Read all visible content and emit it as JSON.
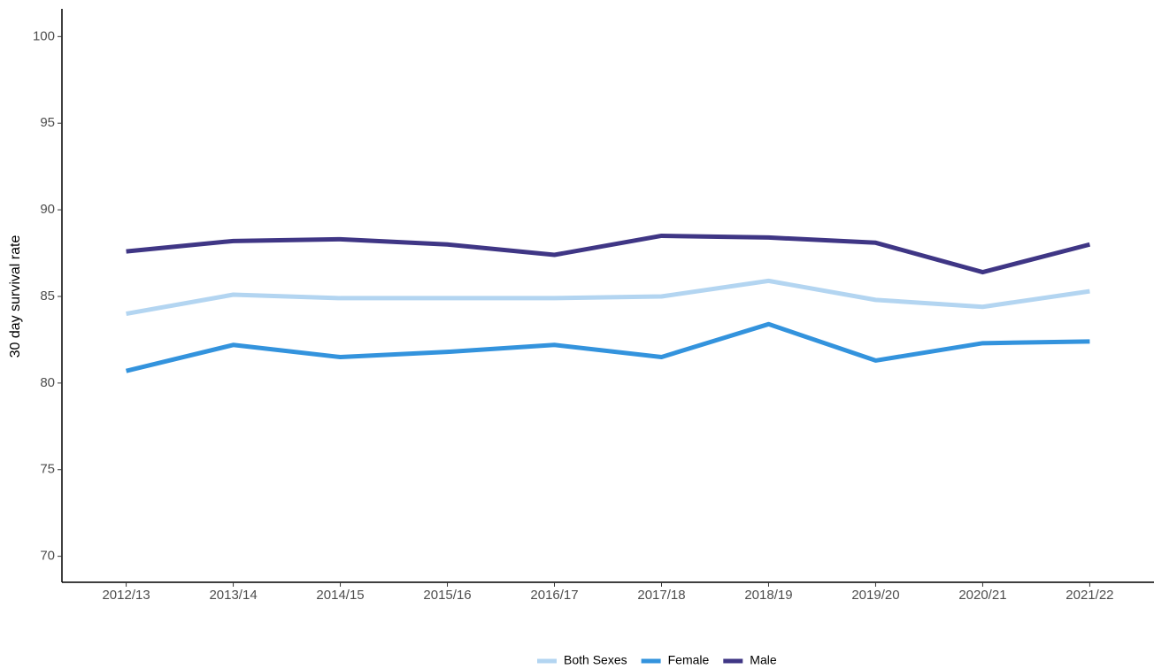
{
  "chart_data": {
    "type": "line",
    "y_label": "30 day survival rate",
    "categories": [
      "2012/13",
      "2013/14",
      "2014/15",
      "2015/16",
      "2016/17",
      "2017/18",
      "2018/19",
      "2019/20",
      "2020/21",
      "2021/22"
    ],
    "series": [
      {
        "name": "Both Sexes",
        "color": "#b3d5f1",
        "values": [
          84.0,
          85.1,
          84.9,
          84.9,
          84.9,
          85.0,
          85.9,
          84.8,
          84.4,
          85.3
        ]
      },
      {
        "name": "Female",
        "color": "#3393dd",
        "values": [
          80.7,
          82.2,
          81.5,
          81.8,
          82.2,
          81.5,
          83.4,
          81.3,
          82.3,
          82.4
        ]
      },
      {
        "name": "Male",
        "color": "#3f3685",
        "values": [
          87.6,
          88.2,
          88.3,
          88.0,
          87.4,
          88.5,
          88.4,
          88.1,
          86.4,
          88.0
        ]
      }
    ],
    "ylim": [
      68.5,
      101.6
    ],
    "yticks": [
      70,
      75,
      80,
      85,
      90,
      95,
      100
    ],
    "grid": false,
    "legend": "bottom"
  }
}
